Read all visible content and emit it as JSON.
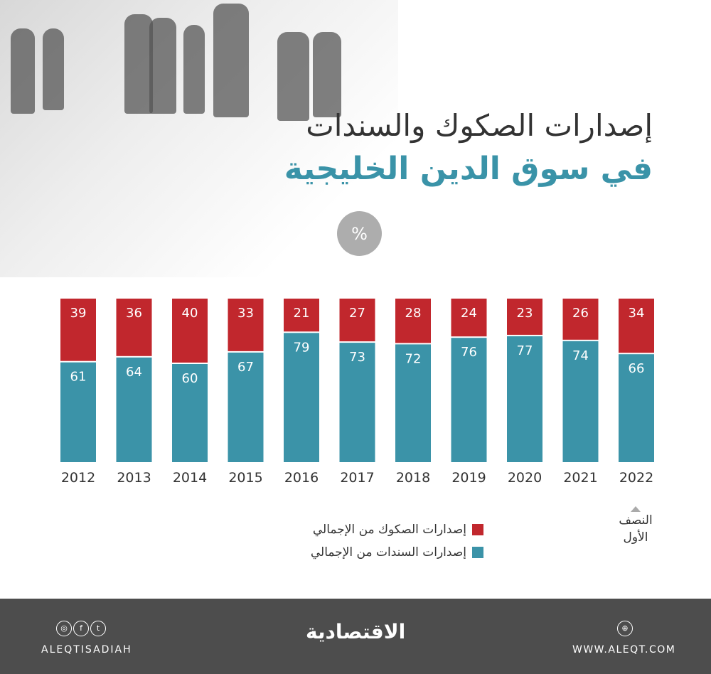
{
  "title_line1": "إصدارات الصكوك والسندات",
  "title_line2": "في سوق الدين الخليجية",
  "unit": "%",
  "chart_data": {
    "type": "bar",
    "stacked": true,
    "categories": [
      "2012",
      "2013",
      "2014",
      "2015",
      "2016",
      "2017",
      "2018",
      "2019",
      "2020",
      "2021",
      "2022"
    ],
    "series": [
      {
        "name": "إصدارات السندات من الإجمالي",
        "color": "#3b93a8",
        "values": [
          61,
          64,
          60,
          67,
          79,
          73,
          72,
          76,
          77,
          74,
          66
        ]
      },
      {
        "name": "إصدارات الصكوك من الإجمالي",
        "color": "#c1272d",
        "values": [
          39,
          36,
          40,
          33,
          21,
          27,
          28,
          24,
          23,
          26,
          34
        ]
      }
    ],
    "ylim": [
      0,
      100
    ],
    "annotation": "النصف الأول",
    "legend": "bottom"
  },
  "footer": {
    "handle": "ALEQTISADIAH",
    "logo": "الاقتصادية",
    "website": "WWW.ALEQT.COM",
    "social_icons": [
      "instagram-icon",
      "facebook-icon",
      "twitter-icon"
    ],
    "web_icon": "globe-icon"
  }
}
